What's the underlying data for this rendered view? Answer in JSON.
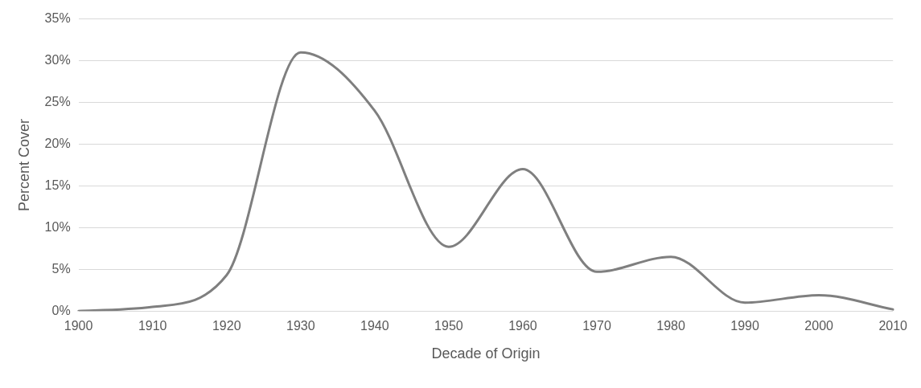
{
  "chart_data": {
    "type": "line",
    "xlabel": "Decade of Origin",
    "ylabel": "Percent Cover",
    "categories": [
      "1900",
      "1910",
      "1920",
      "1930",
      "1940",
      "1950",
      "1960",
      "1970",
      "1980",
      "1990",
      "2000",
      "2010"
    ],
    "series": [
      {
        "color": "#7f7f7f",
        "values": [
          0,
          0.5,
          4.3,
          31,
          24,
          7.7,
          17,
          4.7,
          6.5,
          1,
          1.9,
          0.2
        ]
      }
    ],
    "ylim": [
      0,
      35
    ],
    "yticks": [
      {
        "value": 0,
        "label": "0%"
      },
      {
        "value": 5,
        "label": "5%"
      },
      {
        "value": 10,
        "label": "10%"
      },
      {
        "value": 15,
        "label": "15%"
      },
      {
        "value": 20,
        "label": "20%"
      },
      {
        "value": 25,
        "label": "25%"
      },
      {
        "value": 30,
        "label": "30%"
      },
      {
        "value": 35,
        "label": "35%"
      }
    ],
    "grid": "y",
    "legend": false,
    "marker": "none",
    "line_style": "solid"
  }
}
